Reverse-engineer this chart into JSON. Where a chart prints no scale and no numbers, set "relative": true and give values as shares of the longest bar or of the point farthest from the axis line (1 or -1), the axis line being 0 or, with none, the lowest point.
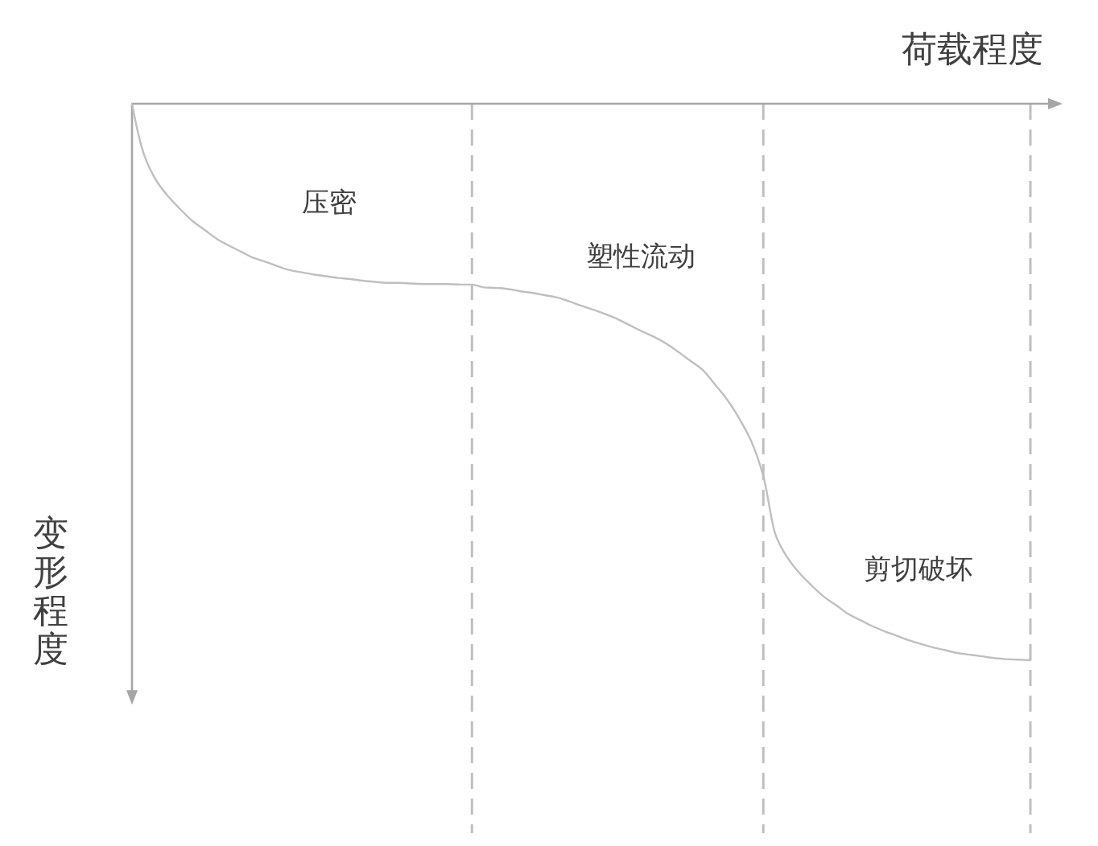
{
  "chart_data": {
    "type": "line",
    "relative": true,
    "xlabel": "荷载程度",
    "ylabel": "变形程度",
    "categories": [
      null,
      null,
      null,
      null,
      null,
      null,
      null,
      null,
      null,
      null,
      null,
      null,
      null,
      null,
      null,
      null,
      null,
      null,
      null,
      null,
      null,
      null,
      null,
      null,
      null,
      null,
      null,
      null,
      null,
      null,
      null,
      null,
      null,
      null,
      null,
      null,
      null,
      null,
      null,
      null,
      null,
      null,
      null,
      null,
      null,
      null,
      null,
      null,
      null,
      null,
      null,
      null,
      null,
      null,
      null,
      null,
      null,
      null,
      null,
      null,
      null,
      null,
      null,
      null,
      null,
      null,
      null,
      null,
      null,
      null,
      null,
      null,
      null,
      null,
      null
    ],
    "series": [
      {
        "color": "#bfbfbf",
        "values": [
          0,
          -0.092,
          -0.138,
          -0.167,
          -0.19,
          -0.211,
          -0.227,
          -0.243,
          -0.255,
          -0.266,
          -0.277,
          -0.284,
          -0.292,
          -0.299,
          -0.303,
          -0.307,
          -0.31,
          -0.313,
          -0.315,
          -0.318,
          -0.32,
          -0.322,
          -0.322,
          -0.323,
          -0.324,
          -0.324,
          -0.324,
          -0.325,
          -0.325,
          -0.33,
          -0.331,
          -0.333,
          -0.337,
          -0.34,
          -0.344,
          -0.348,
          -0.355,
          -0.363,
          -0.37,
          -0.378,
          -0.387,
          -0.398,
          -0.409,
          -0.419,
          -0.431,
          -0.446,
          -0.462,
          -0.478,
          -0.504,
          -0.531,
          -0.565,
          -0.606,
          -0.669,
          -0.774,
          -0.816,
          -0.844,
          -0.866,
          -0.886,
          -0.901,
          -0.917,
          -0.928,
          -0.939,
          -0.948,
          -0.956,
          -0.964,
          -0.971,
          -0.977,
          -0.982,
          -0.987,
          -0.99,
          -0.993,
          -0.996,
          -0.998,
          -0.999,
          -1.0
        ]
      }
    ],
    "marker": "none",
    "line_style": "solid",
    "grid": "x",
    "annotations": [
      "压密",
      "塑性流动",
      "剪切破坏"
    ]
  }
}
